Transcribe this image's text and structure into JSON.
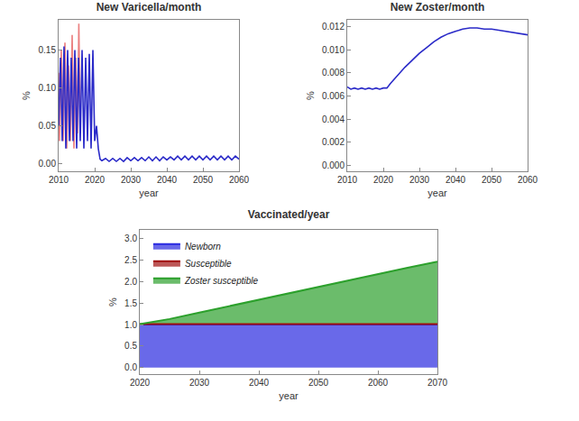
{
  "chart_data": [
    {
      "type": "line",
      "title": "New Varicella/month",
      "x_label": "year",
      "y_label": "%",
      "xlim": [
        2010,
        2060
      ],
      "xticks": [
        2010,
        2020,
        2030,
        2040,
        2050,
        2060
      ],
      "ylim": [
        -0.01,
        0.19
      ],
      "yticks": [
        {
          "value": 0,
          "label": "0.00"
        },
        {
          "value": 0.05,
          "label": "0.05"
        },
        {
          "value": 0.1,
          "label": "0.10"
        },
        {
          "value": 0.15,
          "label": "0.15"
        }
      ],
      "grid": false,
      "series": [
        {
          "color": "#e86a6a",
          "x": [
            2010.0,
            2010.25,
            2010.75,
            2011.25,
            2011.75,
            2012.25,
            2012.75,
            2013.25,
            2013.75,
            2014.25,
            2014.75,
            2015.25,
            2015.6,
            2016.0
          ],
          "values": [
            0.12,
            0.03,
            0.15,
            0.03,
            0.16,
            0.02,
            0.13,
            0.03,
            0.17,
            0.02,
            0.14,
            0.04,
            0.185,
            0.05
          ]
        },
        {
          "color": "#2a2ac8",
          "x": [
            2010.0,
            2010.5,
            2011.0,
            2011.5,
            2012.0,
            2012.5,
            2013.0,
            2013.5,
            2014.0,
            2014.5,
            2015.0,
            2015.5,
            2016.0,
            2016.5,
            2017.0,
            2017.5,
            2018.0,
            2018.5,
            2019.0,
            2019.5,
            2020.0,
            2020.5,
            2021.0,
            2021.5,
            2022,
            2023,
            2024,
            2025,
            2026,
            2027,
            2028,
            2029,
            2030,
            2031,
            2032,
            2033,
            2034,
            2035,
            2036,
            2037,
            2038,
            2039,
            2040,
            2041,
            2042,
            2043,
            2044,
            2045,
            2046,
            2047,
            2048,
            2049,
            2050,
            2051,
            2052,
            2053,
            2054,
            2055,
            2056,
            2057,
            2058,
            2059,
            2060
          ],
          "values": [
            0.05,
            0.14,
            0.03,
            0.155,
            0.02,
            0.15,
            0.03,
            0.14,
            0.03,
            0.15,
            0.02,
            0.14,
            0.03,
            0.15,
            0.02,
            0.14,
            0.03,
            0.145,
            0.02,
            0.15,
            0.03,
            0.05,
            0.02,
            0.006,
            0.004,
            0.007,
            0.003,
            0.007,
            0.003,
            0.007,
            0.003,
            0.008,
            0.004,
            0.008,
            0.004,
            0.008,
            0.004,
            0.009,
            0.004,
            0.009,
            0.004,
            0.009,
            0.005,
            0.009,
            0.005,
            0.01,
            0.005,
            0.01,
            0.005,
            0.01,
            0.005,
            0.01,
            0.005,
            0.01,
            0.005,
            0.01,
            0.005,
            0.01,
            0.005,
            0.01,
            0.005,
            0.01,
            0.006
          ]
        }
      ]
    },
    {
      "type": "line",
      "title": "New Zoster/month",
      "x_label": "year",
      "y_label": "%",
      "xlim": [
        2010,
        2060
      ],
      "xticks": [
        2010,
        2020,
        2030,
        2040,
        2050,
        2060
      ],
      "ylim": [
        -0.0005,
        0.0126
      ],
      "yticks": [
        {
          "value": 0,
          "label": "0.000"
        },
        {
          "value": 0.002,
          "label": "0.002"
        },
        {
          "value": 0.004,
          "label": "0.004"
        },
        {
          "value": 0.006,
          "label": "0.006"
        },
        {
          "value": 0.008,
          "label": "0.008"
        },
        {
          "value": 0.01,
          "label": "0.010"
        },
        {
          "value": 0.012,
          "label": "0.012"
        }
      ],
      "grid": false,
      "series": [
        {
          "color": "#2a2ac8",
          "x": [
            2010,
            2011,
            2012,
            2013,
            2014,
            2015,
            2016,
            2017,
            2018,
            2019,
            2020,
            2021,
            2022,
            2024,
            2026,
            2028,
            2030,
            2032,
            2034,
            2036,
            2038,
            2040,
            2042,
            2044,
            2046,
            2048,
            2050,
            2052,
            2054,
            2056,
            2058,
            2060
          ],
          "values": [
            0.0068,
            0.0066,
            0.0067,
            0.0066,
            0.0067,
            0.0066,
            0.0067,
            0.0066,
            0.0067,
            0.0066,
            0.0067,
            0.0067,
            0.0071,
            0.0078,
            0.0085,
            0.0091,
            0.0097,
            0.0102,
            0.0107,
            0.0111,
            0.0114,
            0.0116,
            0.0118,
            0.0119,
            0.0119,
            0.0118,
            0.0118,
            0.0117,
            0.0116,
            0.0115,
            0.0114,
            0.0113
          ]
        }
      ]
    },
    {
      "type": "area",
      "title": "Vaccinated/year",
      "x_label": "year",
      "y_label": "%",
      "xlim": [
        2020,
        2070
      ],
      "xticks": [
        2020,
        2030,
        2040,
        2050,
        2060,
        2070
      ],
      "ylim": [
        -0.15,
        3.2
      ],
      "yticks": [
        {
          "value": 0,
          "label": "0.0"
        },
        {
          "value": 0.5,
          "label": "0.5"
        },
        {
          "value": 1,
          "label": "1.0"
        },
        {
          "value": 1.5,
          "label": "1.5"
        },
        {
          "value": 2,
          "label": "2.0"
        },
        {
          "value": 2.5,
          "label": "2.5"
        },
        {
          "value": 3,
          "label": "3.0"
        }
      ],
      "grid": false,
      "stacked": true,
      "legend": "top left",
      "x": [
        2020,
        2025,
        2030,
        2035,
        2040,
        2045,
        2050,
        2055,
        2060,
        2065,
        2070
      ],
      "series": [
        {
          "name": "Newborn",
          "color": "#2a2ae0",
          "values": [
            1.0,
            1.0,
            1.0,
            1.0,
            1.0,
            1.0,
            1.0,
            1.0,
            1.0,
            1.0,
            1.0
          ]
        },
        {
          "name": "Susceptible",
          "color": "#a01010",
          "values": [
            0.01,
            0.01,
            0.01,
            0.01,
            0.01,
            0.01,
            0.01,
            0.01,
            0.01,
            0.01,
            0.01
          ]
        },
        {
          "name": "Zoster susceptible",
          "color": "#2ca02c",
          "values": [
            0.0,
            0.12,
            0.27,
            0.42,
            0.57,
            0.72,
            0.87,
            1.02,
            1.17,
            1.31,
            1.45
          ]
        }
      ]
    }
  ]
}
